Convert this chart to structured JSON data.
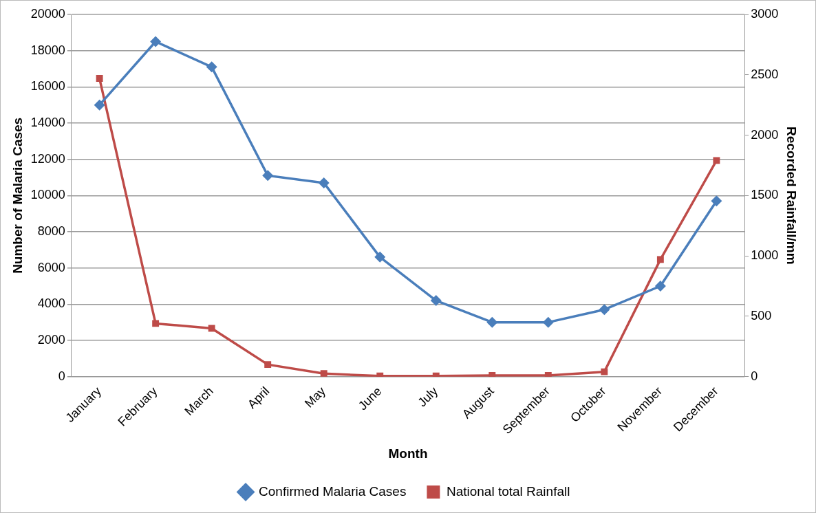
{
  "chart_data": {
    "type": "line",
    "categories": [
      "January",
      "February",
      "March",
      "April",
      "May",
      "June",
      "July",
      "August",
      "September",
      "October",
      "November",
      "December"
    ],
    "xlabel": "Month",
    "ylabel": "Number of Malaria Cases",
    "y2label": "Recorded Rainfall/mm",
    "ylim": [
      0,
      20000
    ],
    "yticks": [
      0,
      2000,
      4000,
      6000,
      8000,
      10000,
      12000,
      14000,
      16000,
      18000,
      20000
    ],
    "y2lim": [
      0,
      3000
    ],
    "y2ticks": [
      0,
      500,
      1000,
      1500,
      2000,
      2500,
      3000
    ],
    "grid": "y",
    "legend": "bottom",
    "series": [
      {
        "name": "Confirmed Malaria Cases",
        "color": "#4a7ebb",
        "marker": "diamond",
        "values": [
          15000,
          18500,
          17100,
          11100,
          10700,
          6600,
          4200,
          3000,
          3000,
          3700,
          5000,
          9700
        ]
      },
      {
        "name": "National total Rainfall",
        "color": "#be4b48",
        "marker": "square",
        "axis": "y2",
        "values": [
          2470,
          440,
          400,
          100,
          25,
          5,
          5,
          10,
          10,
          40,
          970,
          1790
        ]
      }
    ]
  }
}
